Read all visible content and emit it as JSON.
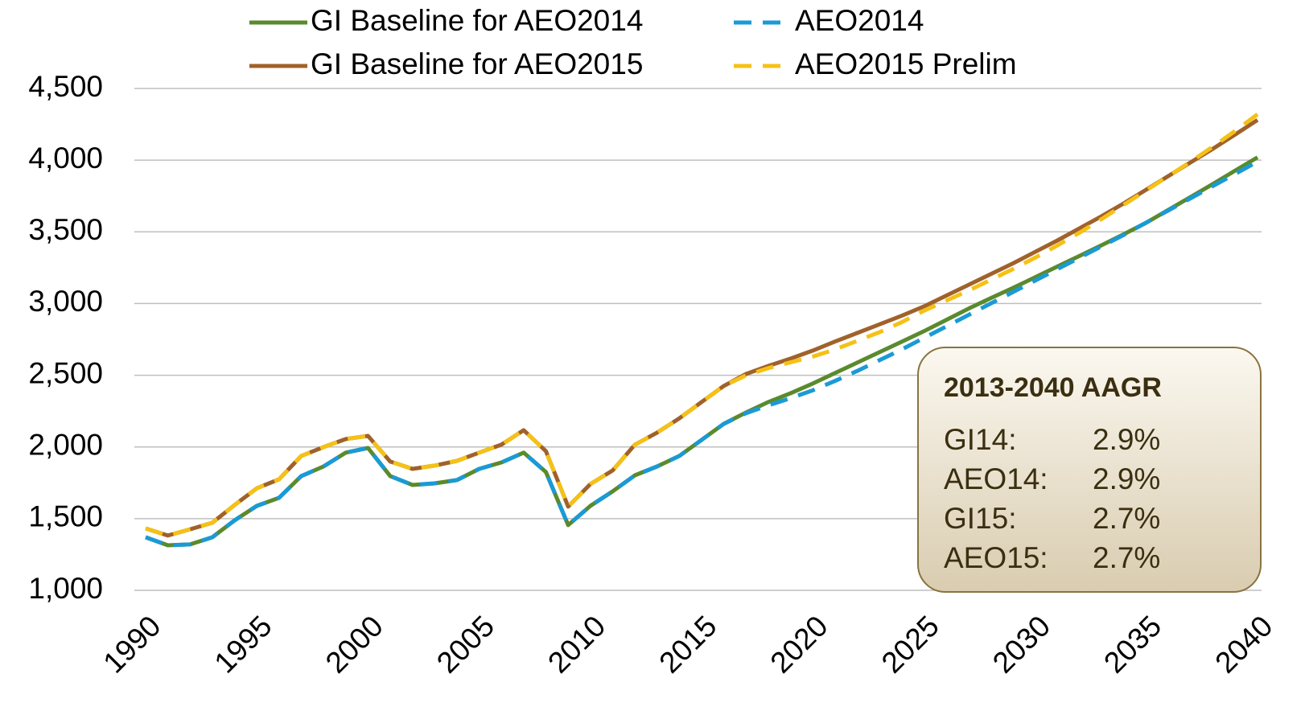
{
  "chart_data": {
    "type": "line",
    "x": [
      1990,
      1991,
      1992,
      1993,
      1994,
      1995,
      1996,
      1997,
      1998,
      1999,
      2000,
      2001,
      2002,
      2003,
      2004,
      2005,
      2006,
      2007,
      2008,
      2009,
      2010,
      2011,
      2012,
      2013,
      2014,
      2015,
      2016,
      2017,
      2018,
      2019,
      2020,
      2021,
      2022,
      2023,
      2024,
      2025,
      2026,
      2027,
      2028,
      2029,
      2030,
      2031,
      2032,
      2033,
      2034,
      2035,
      2036,
      2037,
      2038,
      2039,
      2040
    ],
    "xlim": [
      1990,
      2040
    ],
    "xticks": [
      1990,
      1995,
      2000,
      2005,
      2010,
      2015,
      2020,
      2025,
      2030,
      2035,
      2040
    ],
    "ylim": [
      1000,
      4500
    ],
    "yticks": [
      {
        "value": 1000,
        "label": "1,000"
      },
      {
        "value": 1500,
        "label": "1,500"
      },
      {
        "value": 2000,
        "label": "2,000"
      },
      {
        "value": 2500,
        "label": "2,500"
      },
      {
        "value": 3000,
        "label": "3,000"
      },
      {
        "value": 3500,
        "label": "3,500"
      },
      {
        "value": 4000,
        "label": "4,000"
      },
      {
        "value": 4500,
        "label": "4,500"
      }
    ],
    "grid": true,
    "legend": "top",
    "series": [
      {
        "name": "GI Baseline for AEO2014",
        "color": "#5a8a2e",
        "line_style": "solid",
        "values": [
          1370,
          1314,
          1320,
          1370,
          1488,
          1589,
          1645,
          1797,
          1864,
          1960,
          1993,
          1797,
          1735,
          1746,
          1769,
          1847,
          1892,
          1960,
          1825,
          1455,
          1589,
          1690,
          1802,
          1864,
          1937,
          2049,
          2161,
          2240,
          2313,
          2375,
          2442,
          2515,
          2588,
          2661,
          2734,
          2807,
          2885,
          2964,
          3037,
          3109,
          3183,
          3258,
          3333,
          3408,
          3485,
          3564,
          3654,
          3744,
          3834,
          3928,
          4020
        ]
      },
      {
        "name": "AEO2014",
        "color": "#1a9ad6",
        "line_style": "dashed",
        "values": [
          1370,
          1314,
          1320,
          1370,
          1488,
          1589,
          1645,
          1797,
          1864,
          1960,
          1993,
          1797,
          1735,
          1746,
          1769,
          1847,
          1892,
          1960,
          1825,
          1455,
          1589,
          1690,
          1802,
          1864,
          1937,
          2049,
          2161,
          2235,
          2290,
          2340,
          2395,
          2460,
          2530,
          2605,
          2680,
          2760,
          2840,
          2920,
          3000,
          3080,
          3160,
          3240,
          3320,
          3400,
          3480,
          3565,
          3650,
          3735,
          3820,
          3905,
          3990
        ]
      },
      {
        "name": "GI Baseline for AEO2015",
        "color": "#a0622a",
        "line_style": "solid",
        "values": [
          1432,
          1382,
          1426,
          1471,
          1595,
          1712,
          1774,
          1937,
          1999,
          2055,
          2077,
          1898,
          1847,
          1870,
          1903,
          1960,
          2016,
          2117,
          1971,
          1584,
          1741,
          1836,
          2016,
          2100,
          2200,
          2313,
          2425,
          2509,
          2565,
          2616,
          2672,
          2735,
          2795,
          2855,
          2915,
          2980,
          3055,
          3130,
          3205,
          3280,
          3360,
          3440,
          3525,
          3610,
          3700,
          3795,
          3890,
          3985,
          4080,
          4180,
          4280
        ]
      },
      {
        "name": "AEO2015 Prelim",
        "color": "#f5c116",
        "line_style": "dashed",
        "values": [
          1432,
          1382,
          1426,
          1471,
          1595,
          1712,
          1774,
          1937,
          1999,
          2055,
          2077,
          1898,
          1847,
          1870,
          1903,
          1960,
          2016,
          2117,
          1971,
          1584,
          1741,
          1836,
          2016,
          2100,
          2200,
          2313,
          2425,
          2500,
          2550,
          2590,
          2630,
          2680,
          2740,
          2800,
          2870,
          2950,
          3020,
          3090,
          3165,
          3240,
          3320,
          3405,
          3495,
          3590,
          3690,
          3790,
          3890,
          3990,
          4095,
          4205,
          4320
        ]
      }
    ],
    "annotation": {
      "title": "2013-2040 AAGR",
      "rows": [
        [
          "GI14:",
          "2.9%"
        ],
        [
          "AEO14:",
          "2.9%"
        ],
        [
          "GI15:",
          "2.7%"
        ],
        [
          "AEO15:",
          "2.7%"
        ]
      ]
    }
  }
}
